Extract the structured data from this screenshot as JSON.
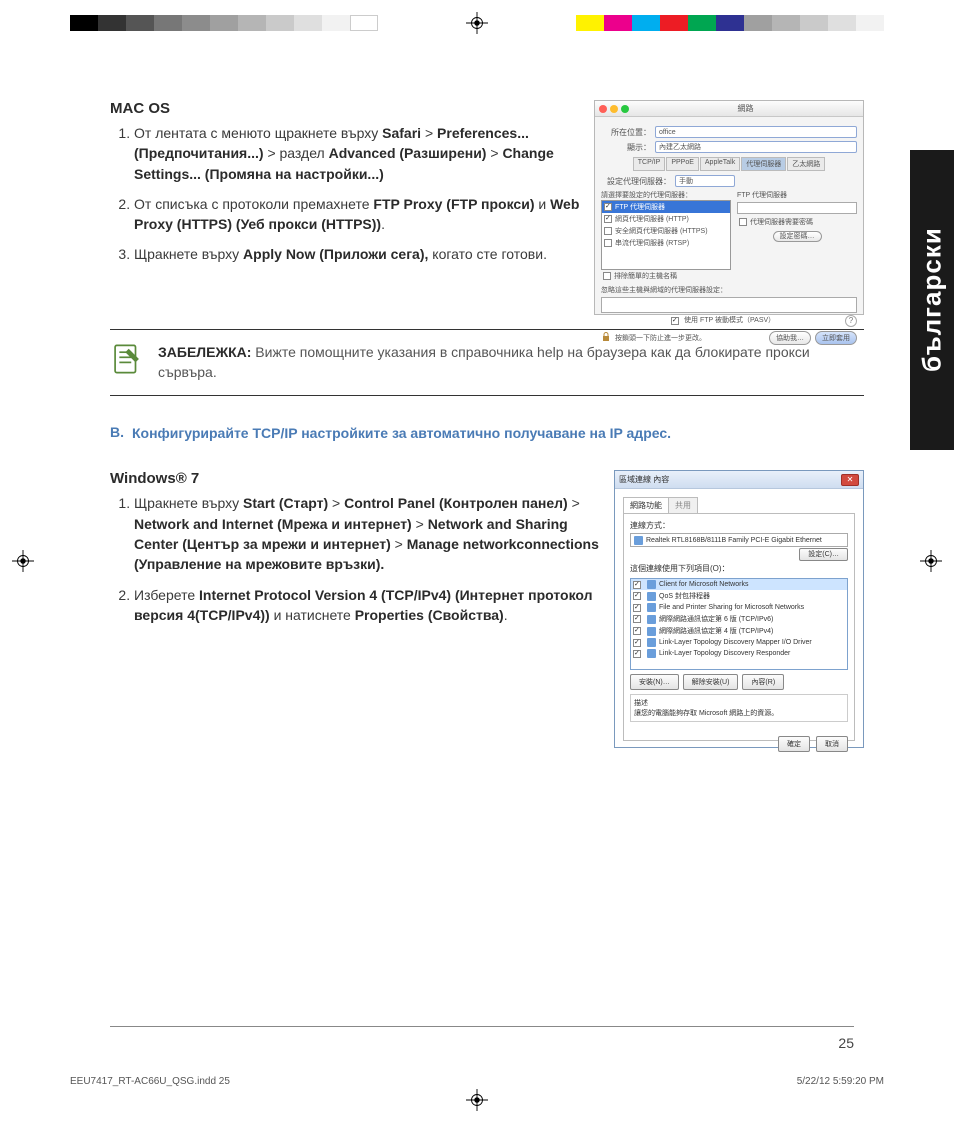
{
  "colorbar_left": [
    "#000000",
    "#333333",
    "#555555",
    "#777777",
    "#8c8c8c",
    "#a0a0a0",
    "#b5b5b5",
    "#cacaca",
    "#dfdfdf",
    "#f2f2f2",
    "#ffffff"
  ],
  "colorbar_right": [
    "#fff200",
    "#ec008c",
    "#00aeef",
    "#ed1c24",
    "#00a651",
    "#2e3192",
    "#a0a0a0",
    "#b5b5b5",
    "#cacaca",
    "#dfdfdf",
    "#f2f2f2"
  ],
  "lang_tab": "български",
  "macos": {
    "heading": "MAC OS",
    "steps": [
      {
        "pre": "От лентата с менюто щракнете върху ",
        "b1": "Safari",
        "gt1": " > ",
        "b2": "Preferences... (Предпочитания...)",
        "gt2": " > раздел ",
        "b3": "Advanced (Разширени)",
        "gt3": " > ",
        "b4": "Change Settings... (Промяна на настройки...)"
      },
      {
        "pre": "От списъка с протоколи премахнете ",
        "b1": "FTP Proxy (FTP прокси)",
        "mid": " и ",
        "b2": "Web Proxy (HTTPS) (Уеб прокси (HTTPS))",
        "post": "."
      },
      {
        "pre": "Щракнете върху ",
        "b1": "Apply Now (Приложи сега),",
        "post": " когато сте готови."
      }
    ],
    "screenshot": {
      "title": "網路",
      "loc_label": "所在位置：",
      "loc_val": "office",
      "show_label": "顯示：",
      "show_val": "內建乙太網路",
      "tabs": [
        "TCP/IP",
        "PPPoE",
        "AppleTalk",
        "代理伺服器",
        "乙太網路"
      ],
      "tab_active": 3,
      "proxy_conf_label": "設定代理伺服器：",
      "proxy_conf_val": "手動",
      "left_head": "請選擇要設定的代理伺服器：",
      "right_head": "FTP 代理伺服器",
      "right_sub": "代理伺服器需要密碼",
      "right_btn": "設定密碼…",
      "list": [
        {
          "checked": true,
          "sel": true,
          "label": "FTP 代理伺服器"
        },
        {
          "checked": true,
          "sel": false,
          "label": "網頁代理伺服器 (HTTP)"
        },
        {
          "checked": false,
          "sel": false,
          "label": "安全網頁代理伺服器 (HTTPS)"
        },
        {
          "checked": false,
          "sel": false,
          "label": "串流代理伺服器 (RTSP)"
        }
      ],
      "exclude_cb": "排除簡單的主機名稱",
      "bypass_label": "忽略這些主機與網域的代理伺服器設定：",
      "pasv": "使用 FTP 被動模式（PASV）",
      "lock_text": "按鎖頭一下防止進一步更改。",
      "btn_help": "協助我…",
      "btn_apply": "立即套用"
    }
  },
  "note": {
    "label": "ЗАБЕЛЕЖКА:",
    "text": " Вижте помощните указания в справочника help на браузера как да блокирате прокси сървъра."
  },
  "section_b": {
    "num": "B.",
    "title": "Конфигурирайте TCP/IP настройките за автоматично получаване на IP адрес."
  },
  "win7": {
    "heading": "Windows® 7",
    "steps": [
      {
        "pre": "Щракнете върху ",
        "b1": "Start (Старт)",
        "gt1": " > ",
        "b2": "Control Panel (Контролен панел)",
        "gt2": " > ",
        "b3": "Network and Internet (Мрежа и интернет)",
        "gt3": " > ",
        "b4": "Network and Sharing Center (Център за мрежи и интернет)",
        "gt4": " > ",
        "b5": "Manage networkconnections (Управление на мрежовите връзки)."
      },
      {
        "pre": "Изберете ",
        "b1": "Internet Protocol Version 4 (TCP/IPv4) (Интернет протокол версия 4(TCP/IPv4))",
        "mid": " и натиснете ",
        "b2": "Properties (Свойства)",
        "post": "."
      }
    ],
    "screenshot": {
      "title": "區域連線 內容",
      "tab1": "網路功能",
      "tab2": "共用",
      "conn_label": "連線方式：",
      "adapter": "Realtek RTL8168B/8111B Family PCI-E Gigabit Ethernet",
      "configure": "設定(C)…",
      "uses_label": "這個連線使用下列項目(O)：",
      "items": [
        {
          "c": true,
          "sel": true,
          "t": "Client for Microsoft Networks"
        },
        {
          "c": true,
          "sel": false,
          "t": "QoS 封包排程器"
        },
        {
          "c": true,
          "sel": false,
          "t": "File and Printer Sharing for Microsoft Networks"
        },
        {
          "c": true,
          "sel": false,
          "t": "網際網路通訊協定第 6 版 (TCP/IPv6)"
        },
        {
          "c": true,
          "sel": false,
          "t": "網際網路通訊協定第 4 版 (TCP/IPv4)"
        },
        {
          "c": true,
          "sel": false,
          "t": "Link-Layer Topology Discovery Mapper I/O Driver"
        },
        {
          "c": true,
          "sel": false,
          "t": "Link-Layer Topology Discovery Responder"
        }
      ],
      "btn_install": "安裝(N)…",
      "btn_uninstall": "解除安裝(U)",
      "btn_props": "內容(R)",
      "desc_head": "描述",
      "desc": "讓您的電腦能夠存取 Microsoft 網路上的資源。",
      "ok": "確定",
      "cancel": "取消"
    }
  },
  "page_number": "25",
  "footer_left": "EEU7417_RT-AC66U_QSG.indd   25",
  "footer_right": "5/22/12   5:59:20 PM"
}
